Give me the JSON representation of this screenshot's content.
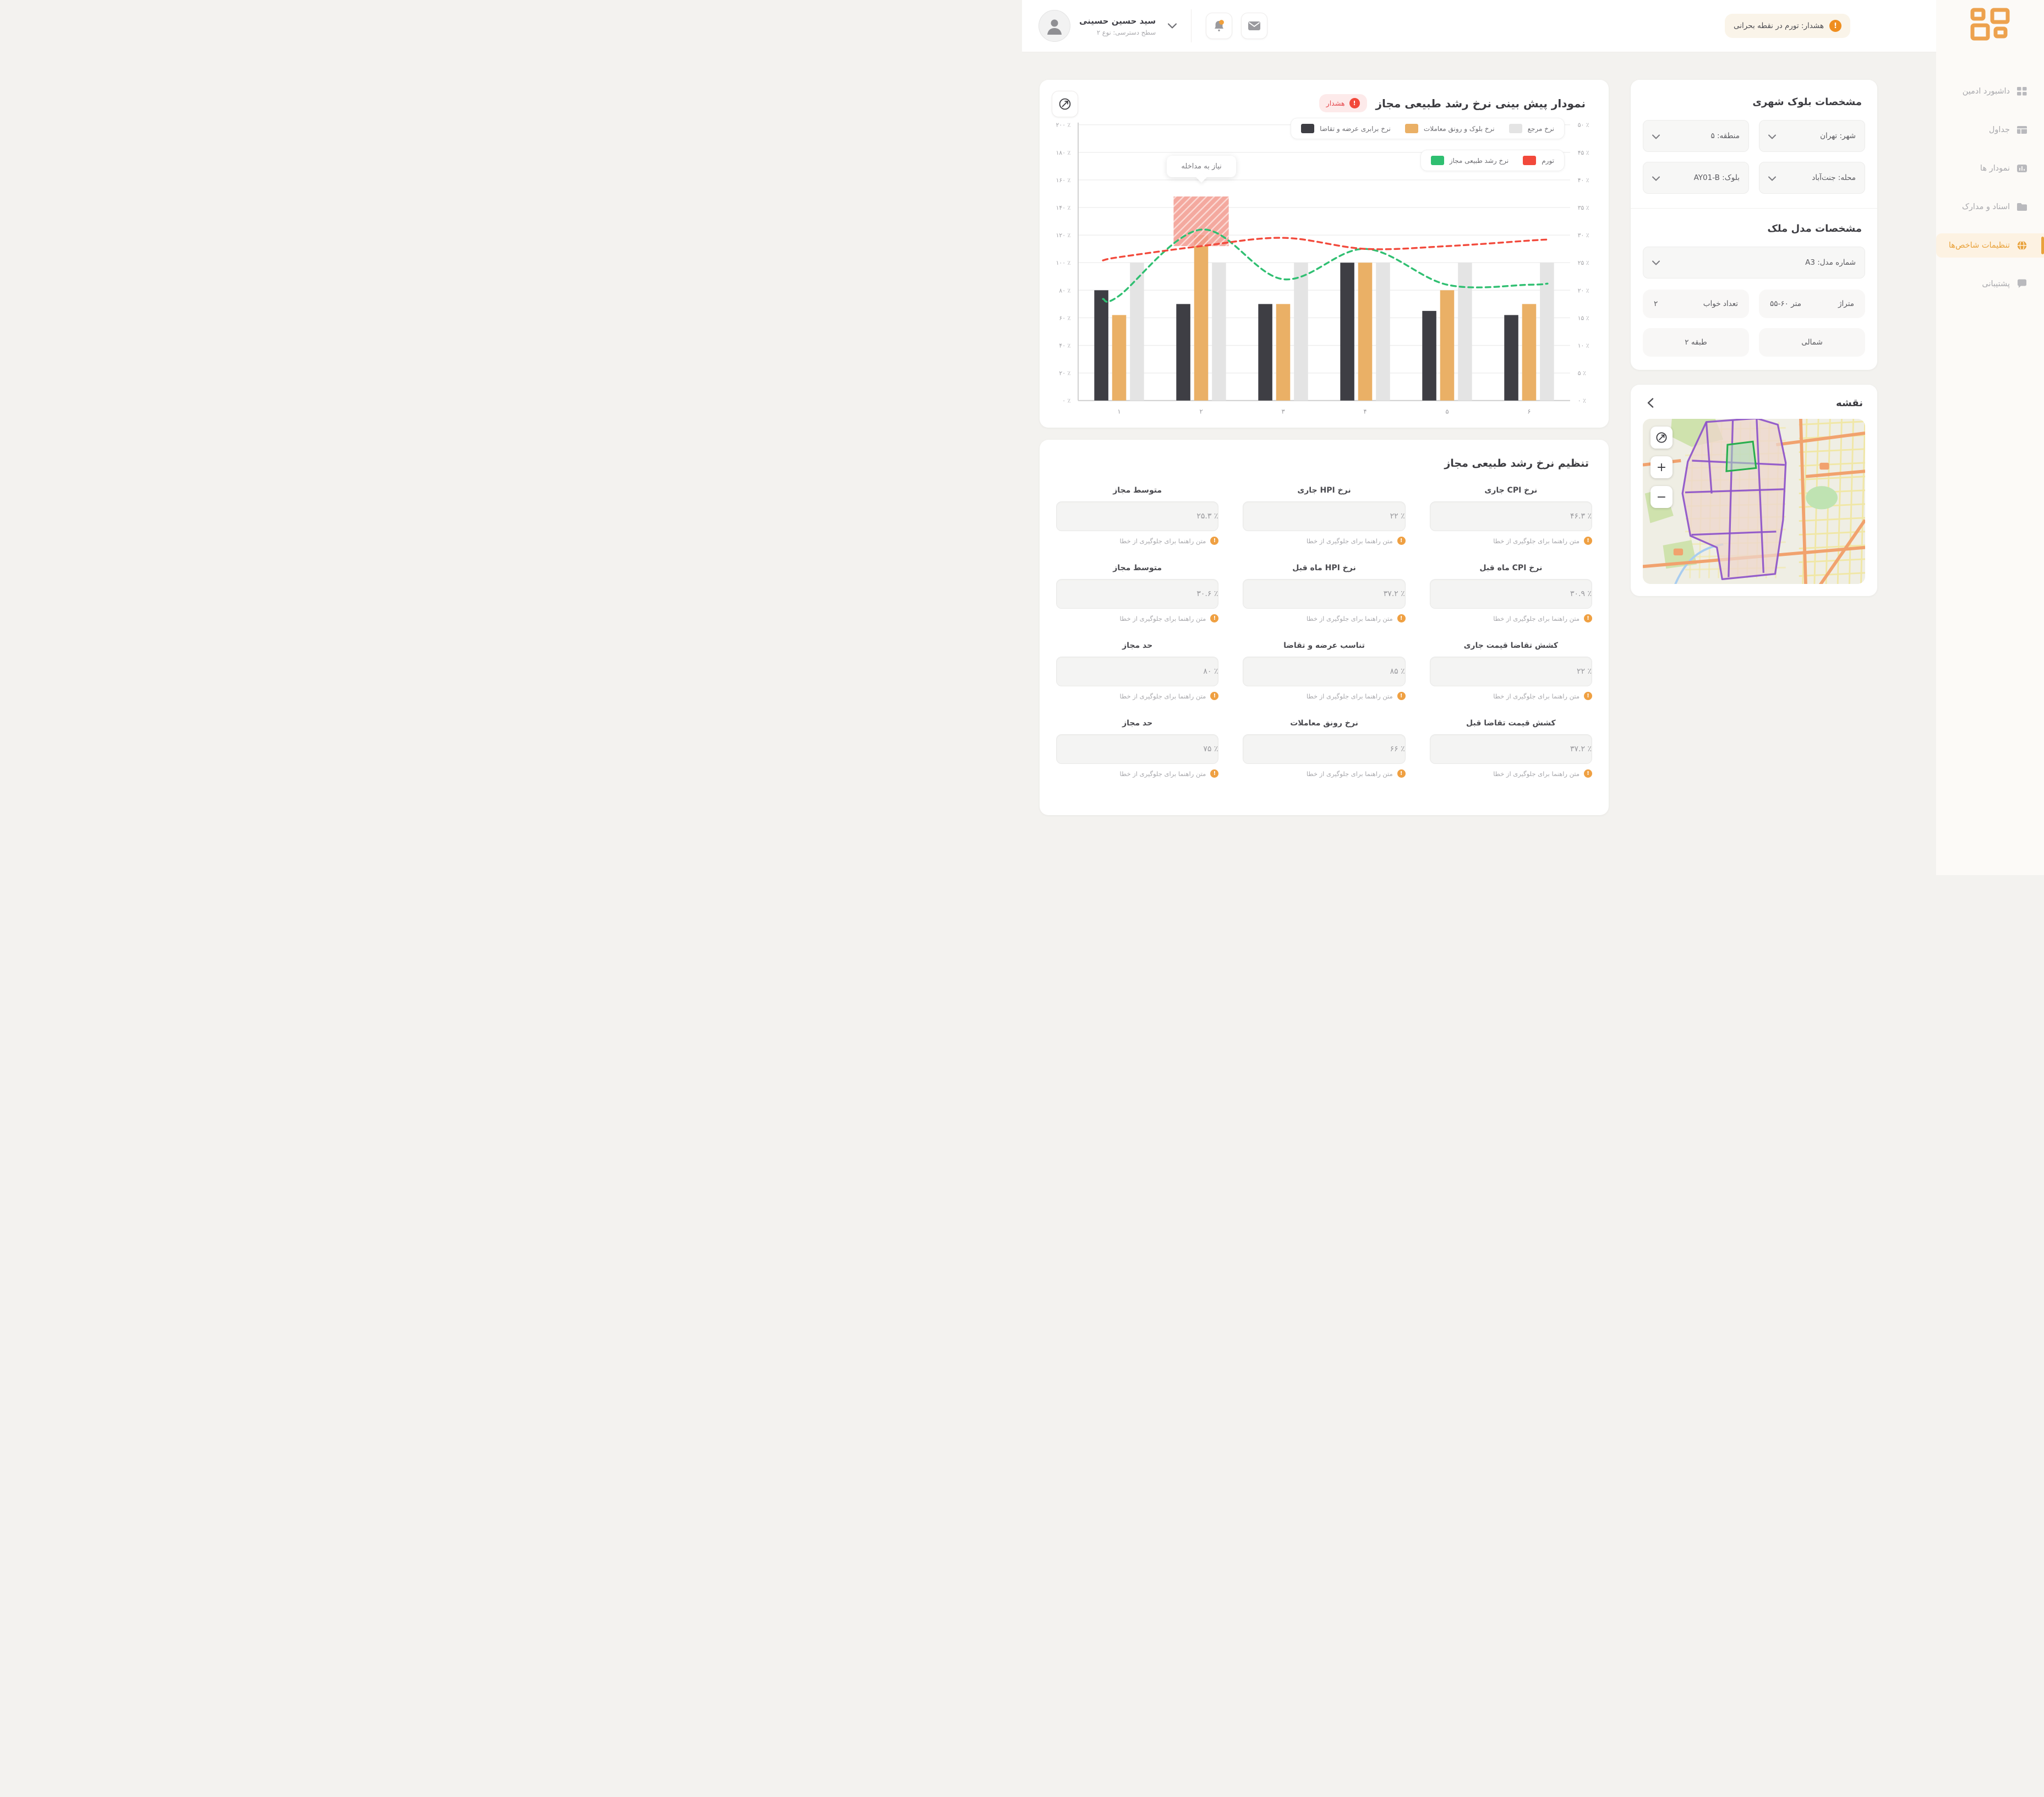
{
  "header": {
    "user_name": "سید حسین حسینی",
    "user_level": "سطح دسترسی: نوع ۲",
    "alert_text": "هشدار: تورم در نقطه بحرانی"
  },
  "sidebar": {
    "active_index": 4,
    "items": [
      {
        "label": "داشبورد ادمین",
        "icon": "grid-icon"
      },
      {
        "label": "جداول",
        "icon": "table-icon"
      },
      {
        "label": "نمودار ها",
        "icon": "chart-icon"
      },
      {
        "label": "اسناد و مدارک",
        "icon": "folder-icon"
      },
      {
        "label": "تنظیمات شاخص‌ها",
        "icon": "globe-icon"
      },
      {
        "label": "پشتیبانی",
        "icon": "support-icon"
      }
    ]
  },
  "chart_card": {
    "title": "نمودار پیش بینی نرخ رشد طبیعی مجاز",
    "badge": "هشدار",
    "tooltip": "نیاز به مداخله"
  },
  "chart_data": {
    "type": "bar+line",
    "categories": [
      "۱",
      "۲",
      "۳",
      "۴",
      "۵",
      "۶"
    ],
    "bar_series": [
      {
        "name": "نرخ برابری عرضه و تقاضا",
        "color": "#3e3e44",
        "axis": "left",
        "values": [
          80,
          70,
          70,
          100,
          65,
          62
        ]
      },
      {
        "name": "نرخ بلوک و رونق معاملات",
        "color": "#eab066",
        "axis": "left",
        "values": [
          62,
          120,
          70,
          100,
          80,
          70
        ]
      },
      {
        "name": "نرخ مرجع",
        "color": "#e4e4e4",
        "axis": "left",
        "values": [
          100,
          100,
          100,
          100,
          100,
          100
        ]
      }
    ],
    "line_series": [
      {
        "name": "نرخ رشد طبیعی مجاز",
        "color": "#2fbf71",
        "axis": "right",
        "values": [
          19,
          31,
          22,
          27.5,
          21,
          21
        ]
      },
      {
        "name": "تورم",
        "color": "#f2493b",
        "axis": "right",
        "values": [
          26,
          28,
          29.5,
          27.5,
          28,
          29
        ]
      }
    ],
    "left_axis": {
      "min": 0,
      "max": 200,
      "step": 20,
      "tick_labels": [
        "۰ ٪",
        "۲۰ ٪",
        "۴۰ ٪",
        "۶۰ ٪",
        "۸۰ ٪",
        "۱۰۰ ٪",
        "۱۲۰ ٪",
        "۱۴۰ ٪",
        "۱۶۰ ٪",
        "۱۸۰ ٪",
        "۲۰۰ ٪"
      ]
    },
    "right_axis": {
      "min": 0,
      "max": 50,
      "step": 5,
      "tick_labels": [
        "۰ ٪",
        "۵ ٪",
        "۱۰ ٪",
        "۱۵ ٪",
        "۲۰ ٪",
        "۲۵ ٪",
        "۳۰ ٪",
        "۳۵ ٪",
        "۴۰ ٪",
        "۴۵ ٪",
        "۵۰ ٪"
      ]
    },
    "annotation": {
      "label": "نیاز به مداخله",
      "category_index": 1,
      "from": 112,
      "to": 148
    },
    "grid": true,
    "legend_position": "top-right"
  },
  "block_specs": {
    "title": "مشخصات بلوک شهری",
    "dropdowns": [
      "شهر: تهران",
      "منطقه: ۵",
      "محله: جنت‌آباد",
      "بلوک: AY01-B"
    ]
  },
  "model_specs": {
    "title": "مشخصات مدل ملک",
    "model_dropdown": "شماره مدل: A3",
    "chips": [
      {
        "label": "متراژ",
        "value": "۵۵-۶۰ متر"
      },
      {
        "label": "تعداد خواب",
        "value": "۲"
      },
      {
        "label": "شمالی",
        "value": ""
      },
      {
        "label": "طبقه ۲",
        "value": ""
      }
    ]
  },
  "map_card": {
    "title": "نقشه"
  },
  "form": {
    "title": "تنظیم نرخ رشد طبیعی مجاز",
    "helper": "متن راهنما برای جلوگیری از خطا",
    "rows": [
      [
        {
          "label": "نرخ CPI جاری",
          "value": "۴۶.۳ ٪"
        },
        {
          "label": "نرخ HPI جاری",
          "value": "۲۲ ٪"
        },
        {
          "label": "متوسط مجاز",
          "value": "۲۵.۳ ٪"
        }
      ],
      [
        {
          "label": "نرخ CPI ماه قبل",
          "value": "۳۰.۹ ٪"
        },
        {
          "label": "نرخ HPI ماه قبل",
          "value": "۳۷.۲ ٪"
        },
        {
          "label": "متوسط مجاز",
          "value": "۳۰.۶ ٪"
        }
      ],
      [
        {
          "label": "کشش تقاضا قیمت جاری",
          "value": "۲۲ ٪"
        },
        {
          "label": "تناسب عرضه و تقاضا",
          "value": "۸۵ ٪"
        },
        {
          "label": "حد مجاز",
          "value": "۸۰ ٪"
        }
      ],
      [
        {
          "label": "کشش قیمت تقاضا قبل",
          "value": "۳۷.۲ ٪"
        },
        {
          "label": "نرخ رونق معاملات",
          "value": "۶۶ ٪"
        },
        {
          "label": "حد مجاز",
          "value": "۷۵ ٪"
        }
      ]
    ]
  },
  "colors": {
    "accent_orange": "#e9a23b",
    "alert_red": "#f2493b",
    "map_block_purple": "#8d52c9",
    "map_highlight_green": "#27ae4e"
  }
}
